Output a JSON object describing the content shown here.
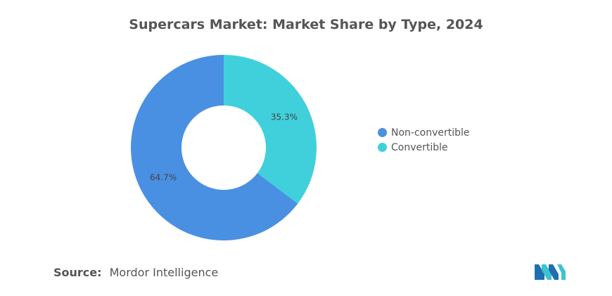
{
  "chart_data": {
    "type": "pie",
    "title": "Supercars Market: Market Share by Type, 2024",
    "series": [
      {
        "name": "Non-convertible",
        "value": 64.7,
        "label": "64.7%",
        "color": "#4a90e2"
      },
      {
        "name": "Convertible",
        "value": 35.3,
        "label": "35.3%",
        "color": "#40d0db"
      }
    ],
    "legend_placement": "right"
  },
  "source": {
    "label": "Source:",
    "text": "Mordor Intelligence"
  },
  "colors": {
    "title": "#555555",
    "text": "#555555",
    "logo_primary": "#1f6fb0",
    "logo_secondary": "#3ec3cf"
  }
}
